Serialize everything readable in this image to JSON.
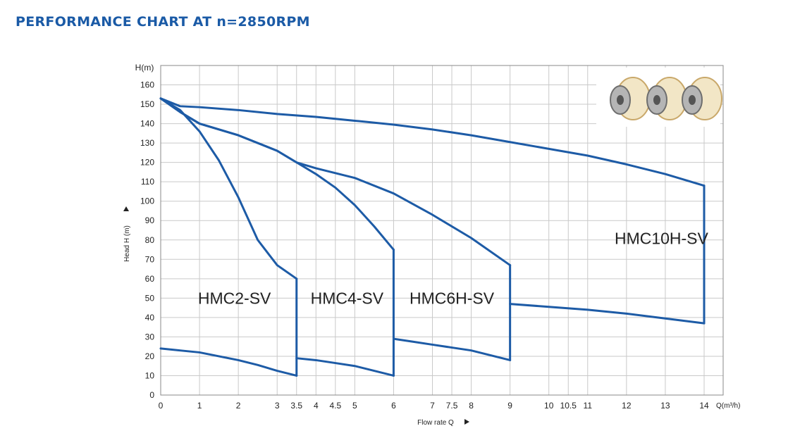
{
  "title": "PERFORMANCE CHART AT n=2850RPM",
  "chart_data": {
    "type": "line",
    "title": "PERFORMANCE CHART AT n=2850RPM",
    "ylabel": "Head H (m)",
    "ylabel_unit": "H(m)",
    "xlabel": "Flow rate Q",
    "xlabel_unit": "Q(m³/h)",
    "xlim": [
      0,
      14
    ],
    "ylim": [
      0,
      160
    ],
    "grid": true,
    "x_ticks": [
      "0",
      "1",
      "2",
      "3",
      "3.5",
      "4",
      "4.5",
      "5",
      "6",
      "7",
      "7.5",
      "8",
      "9",
      "10",
      "10.5",
      "11",
      "12",
      "13",
      "14"
    ],
    "x_tick_values": [
      0,
      1,
      2,
      3,
      3.5,
      4,
      4.5,
      5,
      6,
      7,
      7.5,
      8,
      9,
      10,
      10.5,
      11,
      12,
      13,
      14
    ],
    "y_ticks": [
      "0",
      "10",
      "20",
      "30",
      "40",
      "50",
      "60",
      "70",
      "80",
      "90",
      "100",
      "110",
      "120",
      "130",
      "140",
      "150",
      "160"
    ],
    "y_tick_values": [
      0,
      10,
      20,
      30,
      40,
      50,
      60,
      70,
      80,
      90,
      100,
      110,
      120,
      130,
      140,
      150,
      160
    ],
    "series": [
      {
        "name": "HMC2-SV",
        "max_curve": [
          [
            0,
            153
          ],
          [
            0.5,
            147
          ],
          [
            1,
            136
          ],
          [
            1.5,
            121
          ],
          [
            2,
            102
          ],
          [
            2.5,
            80
          ],
          [
            3,
            67
          ],
          [
            3.5,
            60
          ]
        ],
        "min_curve": [
          [
            0,
            24
          ],
          [
            0.5,
            23
          ],
          [
            1,
            22
          ],
          [
            1.5,
            20
          ],
          [
            2,
            18
          ],
          [
            2.5,
            15.5
          ],
          [
            3,
            12.5
          ],
          [
            3.5,
            10
          ]
        ],
        "region_label_pos": [
          1.9,
          47
        ]
      },
      {
        "name": "HMC4-SV",
        "max_curve": [
          [
            0,
            153
          ],
          [
            0.5,
            146
          ],
          [
            1,
            140
          ],
          [
            2,
            134
          ],
          [
            3,
            126
          ],
          [
            3.5,
            120
          ],
          [
            4,
            114
          ],
          [
            4.5,
            107
          ],
          [
            5,
            98
          ],
          [
            5.5,
            87
          ],
          [
            6,
            75
          ]
        ],
        "min_curve": [
          [
            3.5,
            19
          ],
          [
            4,
            18
          ],
          [
            4.5,
            16.5
          ],
          [
            5,
            15
          ],
          [
            5.5,
            12.5
          ],
          [
            6,
            10
          ]
        ],
        "region_label_pos": [
          4.8,
          47
        ]
      },
      {
        "name": "HMC6H-SV",
        "max_curve": [
          [
            0,
            153
          ],
          [
            0.5,
            146
          ],
          [
            1,
            140
          ],
          [
            2,
            134
          ],
          [
            3,
            126
          ],
          [
            3.5,
            120
          ],
          [
            4,
            117
          ],
          [
            5,
            112
          ],
          [
            6,
            104
          ],
          [
            7,
            93
          ],
          [
            8,
            81
          ],
          [
            9,
            67
          ]
        ],
        "min_curve": [
          [
            6,
            29
          ],
          [
            6.5,
            27.5
          ],
          [
            7,
            26
          ],
          [
            7.5,
            24.5
          ],
          [
            8,
            23
          ],
          [
            8.5,
            20.5
          ],
          [
            9,
            18
          ]
        ],
        "region_label_pos": [
          7.5,
          47
        ]
      },
      {
        "name": "HMC10H-SV",
        "max_curve": [
          [
            0,
            153
          ],
          [
            0.5,
            149
          ],
          [
            1,
            148.5
          ],
          [
            2,
            147
          ],
          [
            3,
            145
          ],
          [
            4,
            143.5
          ],
          [
            5,
            141.5
          ],
          [
            6,
            139.5
          ],
          [
            7,
            137
          ],
          [
            8,
            134
          ],
          [
            9,
            130.5
          ],
          [
            10,
            127
          ],
          [
            11,
            123.5
          ],
          [
            12,
            119
          ],
          [
            13,
            114
          ],
          [
            14,
            108
          ]
        ],
        "min_curve": [
          [
            9,
            47
          ],
          [
            10,
            45.5
          ],
          [
            11,
            44
          ],
          [
            12,
            42
          ],
          [
            13,
            39.5
          ],
          [
            14,
            37
          ]
        ],
        "region_label_pos": [
          12.9,
          78
        ]
      }
    ]
  },
  "inset": {
    "description_icon": "impeller-image"
  }
}
